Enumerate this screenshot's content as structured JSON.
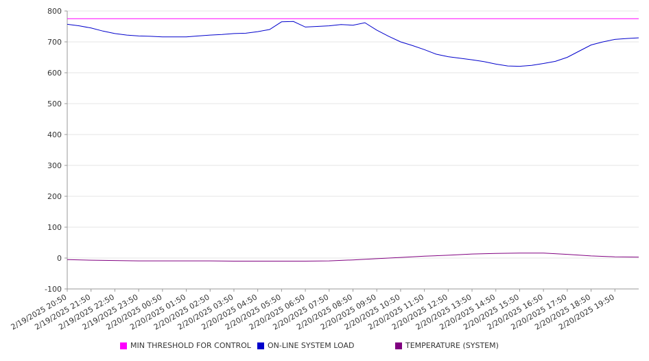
{
  "chart_data": {
    "type": "line",
    "title": "",
    "xlabel": "",
    "ylabel": "",
    "ylim": [
      -100,
      800
    ],
    "yticks": [
      -100,
      0,
      100,
      200,
      300,
      400,
      500,
      600,
      700,
      800
    ],
    "x_tick_labels": [
      "2/19/2025 20:50",
      "2/19/2025 21:50",
      "2/19/2025 22:50",
      "2/19/2025 23:50",
      "2/20/2025 00:50",
      "2/20/2025 01:50",
      "2/20/2025 02:50",
      "2/20/2025 03:50",
      "2/20/2025 04:50",
      "2/20/2025 05:50",
      "2/20/2025 06:50",
      "2/20/2025 07:50",
      "2/20/2025 08:50",
      "2/20/2025 09:50",
      "2/20/2025 10:50",
      "2/20/2025 11:50",
      "2/20/2025 12:50",
      "2/20/2025 13:50",
      "2/20/2025 14:50",
      "2/20/2025 15:50",
      "2/20/2025 16:50",
      "2/20/2025 17:50",
      "2/20/2025 18:50",
      "2/20/2025 19:50"
    ],
    "grid": "horizontal",
    "legend_position": "bottom",
    "series": [
      {
        "name": "MIN THRESHOLD FOR CONTROL",
        "color": "#ff00ff",
        "points": [
          [
            "2/19/2025 20:50",
            775
          ],
          [
            "2/20/2025 20:50",
            775
          ]
        ]
      },
      {
        "name": "ON-LINE SYSTEM LOAD",
        "color": "#0000cc",
        "points": [
          [
            "2/19/2025 20:50",
            757
          ],
          [
            "2/19/2025 21:20",
            752
          ],
          [
            "2/19/2025 21:50",
            745
          ],
          [
            "2/19/2025 22:20",
            735
          ],
          [
            "2/19/2025 22:50",
            727
          ],
          [
            "2/19/2025 23:20",
            722
          ],
          [
            "2/19/2025 23:50",
            719
          ],
          [
            "2/20/2025 00:20",
            718
          ],
          [
            "2/20/2025 00:50",
            716
          ],
          [
            "2/20/2025 01:20",
            716
          ],
          [
            "2/20/2025 01:50",
            716
          ],
          [
            "2/20/2025 02:20",
            719
          ],
          [
            "2/20/2025 02:50",
            722
          ],
          [
            "2/20/2025 03:20",
            724
          ],
          [
            "2/20/2025 03:50",
            727
          ],
          [
            "2/20/2025 04:20",
            728
          ],
          [
            "2/20/2025 04:50",
            733
          ],
          [
            "2/20/2025 05:20",
            740
          ],
          [
            "2/20/2025 05:50",
            765
          ],
          [
            "2/20/2025 06:20",
            766
          ],
          [
            "2/20/2025 06:50",
            748
          ],
          [
            "2/20/2025 07:20",
            750
          ],
          [
            "2/20/2025 07:50",
            752
          ],
          [
            "2/20/2025 08:20",
            756
          ],
          [
            "2/20/2025 08:50",
            754
          ],
          [
            "2/20/2025 09:20",
            762
          ],
          [
            "2/20/2025 09:50",
            738
          ],
          [
            "2/20/2025 10:20",
            718
          ],
          [
            "2/20/2025 10:50",
            700
          ],
          [
            "2/20/2025 11:20",
            688
          ],
          [
            "2/20/2025 11:50",
            675
          ],
          [
            "2/20/2025 12:20",
            660
          ],
          [
            "2/20/2025 12:50",
            652
          ],
          [
            "2/20/2025 13:20",
            647
          ],
          [
            "2/20/2025 13:50",
            642
          ],
          [
            "2/20/2025 14:20",
            636
          ],
          [
            "2/20/2025 14:50",
            628
          ],
          [
            "2/20/2025 15:20",
            622
          ],
          [
            "2/20/2025 15:50",
            621
          ],
          [
            "2/20/2025 16:20",
            624
          ],
          [
            "2/20/2025 16:50",
            630
          ],
          [
            "2/20/2025 17:20",
            637
          ],
          [
            "2/20/2025 17:50",
            650
          ],
          [
            "2/20/2025 18:20",
            670
          ],
          [
            "2/20/2025 18:50",
            690
          ],
          [
            "2/20/2025 19:20",
            700
          ],
          [
            "2/20/2025 19:50",
            708
          ],
          [
            "2/20/2025 20:20",
            711
          ],
          [
            "2/20/2025 20:50",
            713
          ]
        ]
      },
      {
        "name": "TEMPERATURE (SYSTEM)",
        "color": "#800080",
        "points": [
          [
            "2/19/2025 20:50",
            -5
          ],
          [
            "2/19/2025 21:50",
            -7
          ],
          [
            "2/19/2025 22:50",
            -8
          ],
          [
            "2/19/2025 23:50",
            -9
          ],
          [
            "2/20/2025 00:50",
            -9
          ],
          [
            "2/20/2025 01:50",
            -9
          ],
          [
            "2/20/2025 02:50",
            -9
          ],
          [
            "2/20/2025 03:50",
            -10
          ],
          [
            "2/20/2025 04:50",
            -10
          ],
          [
            "2/20/2025 05:50",
            -10
          ],
          [
            "2/20/2025 06:50",
            -10
          ],
          [
            "2/20/2025 07:50",
            -9
          ],
          [
            "2/20/2025 08:50",
            -6
          ],
          [
            "2/20/2025 09:50",
            -2
          ],
          [
            "2/20/2025 10:50",
            2
          ],
          [
            "2/20/2025 11:50",
            6
          ],
          [
            "2/20/2025 12:50",
            9
          ],
          [
            "2/20/2025 13:50",
            13
          ],
          [
            "2/20/2025 14:50",
            15
          ],
          [
            "2/20/2025 15:50",
            16
          ],
          [
            "2/20/2025 16:50",
            16
          ],
          [
            "2/20/2025 17:50",
            12
          ],
          [
            "2/20/2025 18:50",
            7
          ],
          [
            "2/20/2025 19:50",
            4
          ],
          [
            "2/20/2025 20:50",
            3
          ]
        ]
      }
    ]
  }
}
